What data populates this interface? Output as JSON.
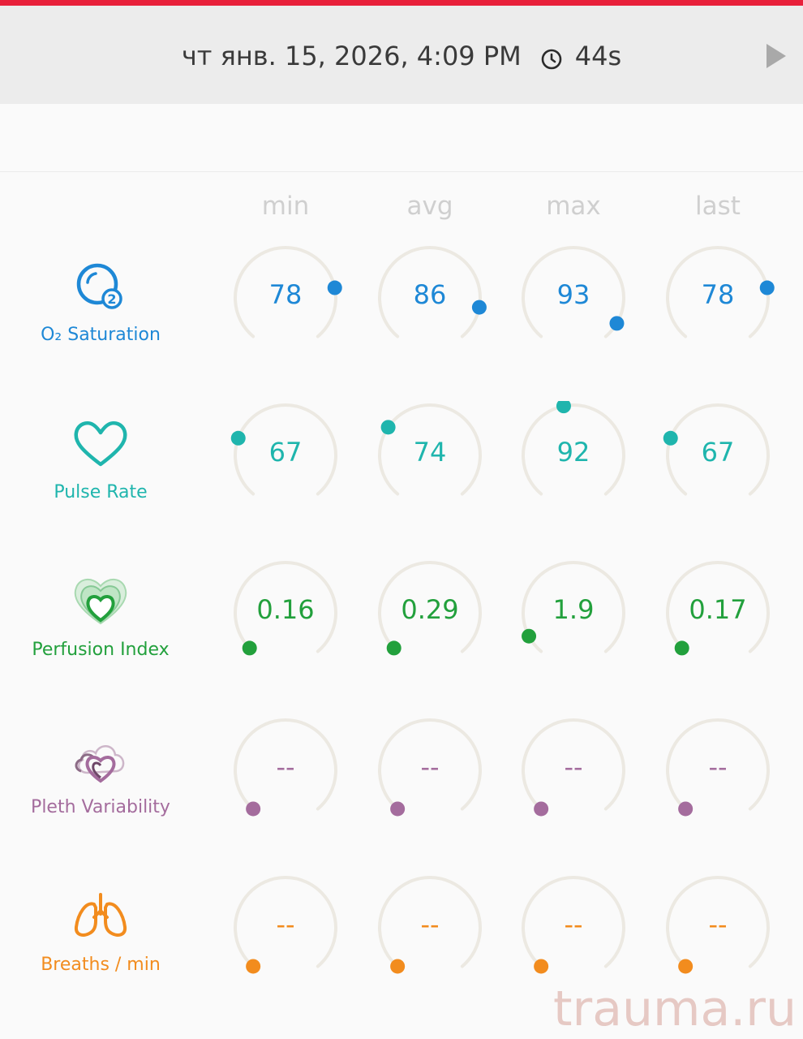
{
  "header": {
    "datetime": "чт янв. 15, 2026, 4:09 PM",
    "duration": "44s",
    "accent_color": "#e8203a"
  },
  "columns": [
    "min",
    "avg",
    "max",
    "last"
  ],
  "metrics": [
    {
      "key": "spo2",
      "label": "O₂ Saturation",
      "color": "#1e88d6",
      "icon": "o2-bubble-icon",
      "values": [
        "78",
        "86",
        "93",
        "78"
      ],
      "levels": [
        0.78,
        0.86,
        0.93,
        0.78
      ]
    },
    {
      "key": "pr",
      "label": "Pulse Rate",
      "color": "#1fb5ad",
      "icon": "heart-outline-icon",
      "values": [
        "67",
        "74",
        "92",
        "67"
      ],
      "levels": [
        0.25,
        0.3,
        0.46,
        0.25
      ]
    },
    {
      "key": "pi",
      "label": "Perfusion Index",
      "color": "#22a03c",
      "icon": "layered-hearts-icon",
      "values": [
        "0.16",
        "0.29",
        "1.9",
        "0.17"
      ],
      "levels": [
        0.02,
        0.02,
        0.08,
        0.02
      ]
    },
    {
      "key": "pvi",
      "label": "Pleth Variability",
      "color": "#a46c9d",
      "icon": "cloud-hearts-icon",
      "values": [
        "--",
        "--",
        "--",
        "--"
      ],
      "levels": [
        0,
        0,
        0,
        0
      ]
    },
    {
      "key": "rr",
      "label": "Breaths / min",
      "color": "#f28c1e",
      "icon": "lungs-icon",
      "values": [
        "--",
        "--",
        "--",
        "--"
      ],
      "levels": [
        0,
        0,
        0,
        0
      ]
    }
  ],
  "watermark": "trauma.ru"
}
